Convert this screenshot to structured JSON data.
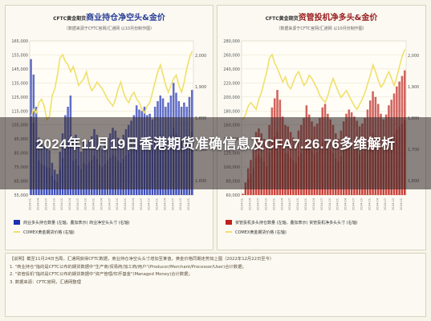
{
  "headline": "2024年11月19日香港期货准确信息及CFA7.26.76多维解析",
  "notes": [
    "【说明】截至11月24日当周，汇通网获得CFTC数据，商业持仓净空头头寸增加至某值，黄金价格同期走势如上图（2022年12月22日至今）",
    "1. \"商业持仓\"指的是CFTC公布的期货数据中\"生产商/贸易商/加工商/用户\"(Producer/Merchant/Processor/User)合计数据；",
    "2. \"资管投机\"指的是CFTC公布的期货数据中\"资产管理/杠杆基金\"(Managed Money)合计数据；",
    "3. 数据来源：CFTC官网，汇通网整理"
  ],
  "charts": [
    {
      "title_prefix": "CFTC黄金期货",
      "title_main": "商业持仓净空头",
      "title_suffix": "&金价",
      "subtitle": "（数据来源于CFTC官网/汇通网 以10月份制作图）",
      "color_theme": "#2a3f98",
      "bar_color": "#1c2fb0",
      "price_color": "#f0e06a",
      "left_ticks": [
        "165,000",
        "155,000",
        "145,000",
        "135,000",
        "125,000",
        "115,000",
        "105,000",
        "95,000",
        "85,000",
        "75,000",
        "65,000",
        "55,000"
      ],
      "right_ticks": [
        "2,000",
        "1,900",
        "1,800",
        "1,700",
        "1,600"
      ],
      "legend_line1": "商业多头持仓数量 (左轴，叠加表示) 商业净空头头寸 (右轴)",
      "legend_line2": "COMEX黄金期货价格 (右轴)",
      "chart_data": {
        "type": "bar",
        "series": [
          {
            "name": "商业持仓净空头头寸",
            "values": [
              152000,
              141000,
              118000,
              96000,
              92000,
              90000,
              88000,
              87000,
              78000,
              73000,
              70000,
              86000,
              99000,
              112000,
              118000,
              126000,
              96000,
              98000,
              90000,
              86000,
              93000,
              91000,
              94000,
              97000,
              102000,
              98000,
              91000,
              88000,
              92000,
              96000,
              99000,
              103000,
              101000,
              96000,
              93000,
              98000,
              102000,
              105000,
              108000,
              112000,
              119000,
              116000,
              115000,
              118000,
              112000,
              113000,
              109000,
              118000,
              122000,
              126000,
              124000,
              118000,
              121000,
              126000,
              135000,
              128000,
              122000,
              118000,
              121000,
              118000,
              125000,
              130000
            ]
          },
          {
            "name": "COMEX黄金价格",
            "values": [
              1830,
              1850,
              1840,
              1870,
              1880,
              1860,
              1820,
              1830,
              1890,
              1910,
              1950,
              2000,
              2010,
              1990,
              1980,
              1960,
              1975,
              1950,
              1920,
              1930,
              1940,
              1960,
              1925,
              1905,
              1915,
              1930,
              1920,
              1910,
              1895,
              1880,
              1870,
              1860,
              1880,
              1910,
              1930,
              1900,
              1880,
              1870,
              1890,
              1900,
              1880,
              1870,
              1850,
              1840,
              1860,
              1870,
              1900,
              1930,
              1960,
              1980,
              1950,
              1920,
              1900,
              1920,
              1940,
              1950,
              1920,
              1900,
              1930,
              1970,
              2000,
              2020
            ]
          }
        ],
        "ylim_left": [
          55000,
          165000
        ],
        "ylim_right": [
          1600,
          2050
        ]
      }
    },
    {
      "title_prefix": "CFTC黄金期货",
      "title_main": "资管投机净多头",
      "title_suffix": "&金价",
      "subtitle": "（数据来源于CFTC官网/汇通网 以10月份制作图）",
      "color_theme": "#9a2020",
      "bar_color": "#c0201a",
      "price_color": "#f0e06a",
      "left_ticks": [
        "280,000",
        "260,000",
        "240,000",
        "220,000",
        "200,000",
        "180,000",
        "160,000",
        "140,000",
        "120,000",
        "100,000",
        "80,000",
        "60,000"
      ],
      "right_ticks": [
        "2,000",
        "1,900",
        "1,800",
        "1,700",
        "1,600"
      ],
      "legend_line1": "资管投机多头持仓数量 (左轴，叠加表示) 资管投机净多头头寸 (右轴)",
      "legend_line2": "COMEX黄金期货价格 (右轴)",
      "chart_data": {
        "type": "bar",
        "series": [
          {
            "name": "资管投机净多头头寸",
            "values": [
              62000,
              78000,
              98000,
              110000,
              124000,
              150000,
              155000,
              148000,
              140000,
              128000,
              160000,
              185000,
              198000,
              210000,
              196000,
              172000,
              160000,
              158000,
              150000,
              142000,
              136000,
              152000,
              160000,
              170000,
              188000,
              175000,
              165000,
              158000,
              162000,
              170000,
              185000,
              190000,
              176000,
              168000,
              160000,
              148000,
              140000,
              152000,
              165000,
              176000,
              182000,
              178000,
              172000,
              166000,
              158000,
              162000,
              170000,
              182000,
              195000,
              208000,
              200000,
              190000,
              176000,
              168000,
              175000,
              188000,
              196000,
              205000,
              215000,
              222000,
              230000,
              238000
            ]
          },
          {
            "name": "COMEX黄金价格",
            "values": [
              1820,
              1835,
              1860,
              1870,
              1860,
              1850,
              1880,
              1900,
              1930,
              1960,
              2000,
              2010,
              1985,
              1970,
              1950,
              1930,
              1945,
              1920,
              1910,
              1930,
              1950,
              1960,
              1940,
              1920,
              1930,
              1950,
              1940,
              1925,
              1910,
              1890,
              1880,
              1870,
              1890,
              1920,
              1940,
              1920,
              1900,
              1885,
              1895,
              1905,
              1890,
              1875,
              1860,
              1850,
              1865,
              1880,
              1900,
              1925,
              1950,
              1980,
              1960,
              1935,
              1915,
              1925,
              1945,
              1960,
              1940,
              1920,
              1945,
              1975,
              2005,
              2025
            ]
          }
        ],
        "ylim_left": [
          60000,
          280000
        ],
        "ylim_right": [
          1600,
          2050
        ]
      }
    }
  ]
}
